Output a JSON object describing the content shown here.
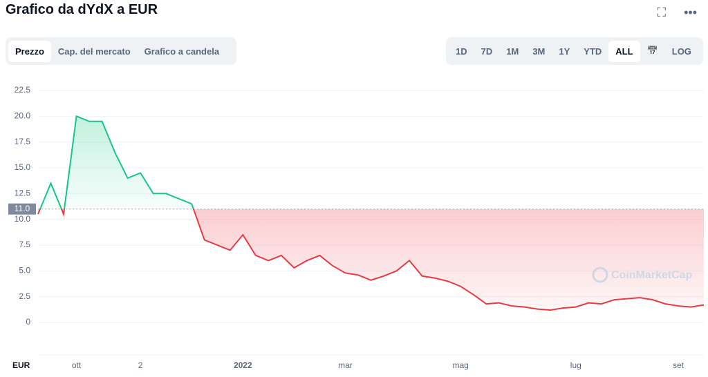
{
  "ui": {
    "title": "Grafico da dYdX a EUR",
    "tabs": [
      "Prezzo",
      "Cap. del mercato",
      "Grafico a candela"
    ],
    "ranges": [
      "1D",
      "7D",
      "1M",
      "3M",
      "1Y",
      "YTD",
      "ALL"
    ],
    "log": "LOG"
  },
  "chart_data": {
    "type": "line",
    "categories": [
      null,
      null,
      null,
      "ott",
      null,
      null,
      null,
      null,
      "2",
      null,
      null,
      null,
      null,
      null,
      null,
      null,
      "2022",
      null,
      null,
      null,
      null,
      null,
      null,
      null,
      "mar",
      null,
      null,
      null,
      null,
      null,
      null,
      null,
      null,
      "mag",
      null,
      null,
      null,
      null,
      null,
      null,
      null,
      null,
      "lug",
      null,
      null,
      null,
      null,
      null,
      null,
      null,
      "set",
      null,
      null
    ],
    "values": [
      10.5,
      13.5,
      10.5,
      20,
      19.5,
      19.5,
      16.5,
      14,
      14.5,
      12.5,
      12.5,
      12,
      11.5,
      8,
      7.5,
      7,
      8.5,
      6.5,
      6,
      6.5,
      5.3,
      6,
      6.5,
      5.5,
      4.8,
      4.6,
      4.1,
      4.5,
      5,
      6,
      4.5,
      4.3,
      4,
      3.5,
      2.7,
      1.8,
      1.9,
      1.6,
      1.5,
      1.3,
      1.2,
      1.4,
      1.5,
      1.9,
      1.8,
      2.2,
      2.3,
      2.4,
      2.2,
      1.8,
      1.6,
      1.5,
      1.7
    ],
    "color_above": "#16c784",
    "color_below": "#ea3943",
    "reference": {
      "value": 11,
      "label": "11.0"
    },
    "y_unit": "EUR",
    "watermark": "CoinMarketCap",
    "ylim": [
      0,
      23.3
    ],
    "yticks": [
      0,
      2.5,
      {
        "value": 5,
        "label": "5.0"
      },
      7.5,
      {
        "value": 10,
        "label": "10.0"
      },
      12.5,
      {
        "value": 15,
        "label": "15.0"
      },
      17.5,
      {
        "value": 20,
        "label": "20.0"
      },
      22.5
    ],
    "grid": true
  }
}
